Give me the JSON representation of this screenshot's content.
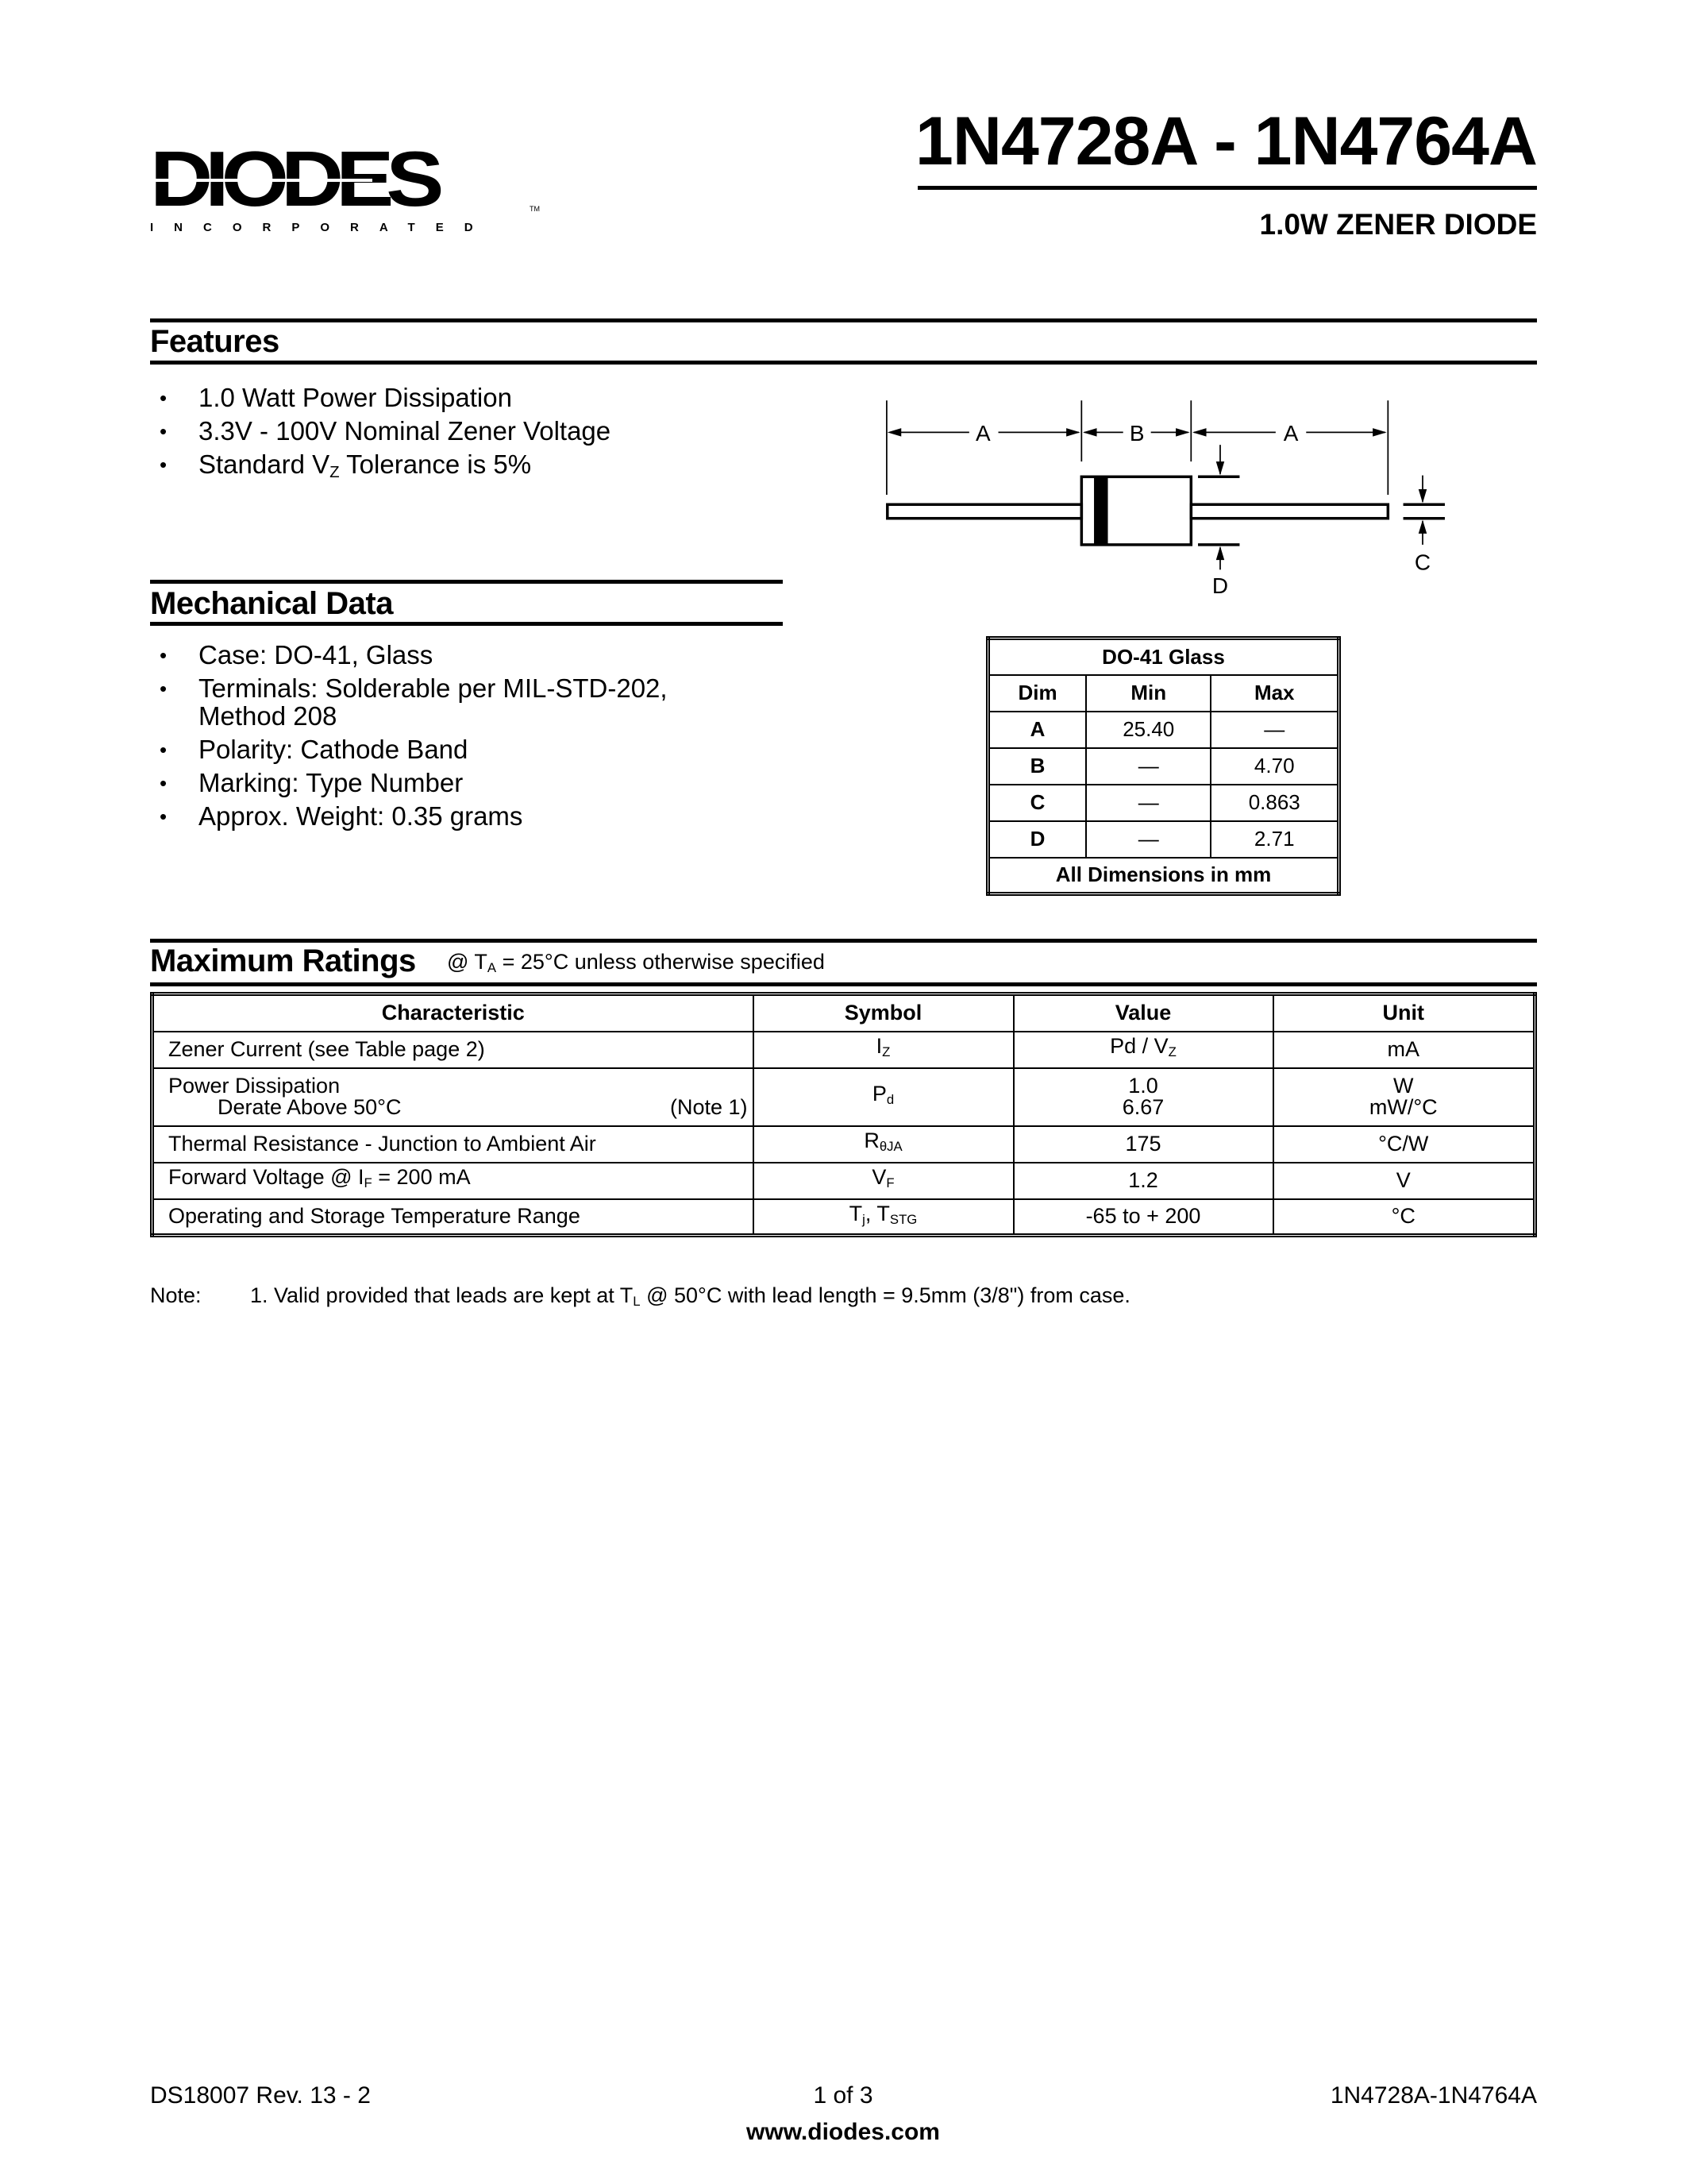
{
  "header": {
    "title": "1N4728A - 1N4764A",
    "subtitle": "1.0W ZENER DIODE",
    "logo_text": "DIODES",
    "logo_sub": "INCORPORATED",
    "logo_tm": "TM"
  },
  "features": {
    "heading": "Features",
    "items": [
      {
        "text": "1.0 Watt Power Dissipation"
      },
      {
        "text": "3.3V - 100V Nominal Zener Voltage"
      },
      {
        "pre": "Standard V",
        "sub": "Z",
        "post": " Tolerance is 5%"
      }
    ]
  },
  "mechanical": {
    "heading": "Mechanical Data",
    "items": [
      "Case: DO-41, Glass",
      "Terminals: Solderable per MIL-STD-202,",
      "Method 208",
      "Polarity: Cathode Band",
      "Marking: Type Number",
      "Approx. Weight: 0.35 grams"
    ]
  },
  "diagram": {
    "labels": {
      "a": "A",
      "b": "B",
      "c": "C",
      "d": "D"
    }
  },
  "dim_table": {
    "title": "DO-41 Glass",
    "headers": [
      "Dim",
      "Min",
      "Max"
    ],
    "rows": [
      [
        "A",
        "25.40",
        "—"
      ],
      [
        "B",
        "—",
        "4.70"
      ],
      [
        "C",
        "—",
        "0.863"
      ],
      [
        "D",
        "—",
        "2.71"
      ]
    ],
    "footer": "All Dimensions in mm"
  },
  "ratings": {
    "heading": "Maximum Ratings",
    "cond_pre": "@ T",
    "cond_sub": "A",
    "cond_post": " = 25°C unless otherwise specified",
    "headers": [
      "Characteristic",
      "Symbol",
      "Value",
      "Unit"
    ],
    "rows": [
      {
        "char": "Zener Current (see Table page 2)",
        "sym": "I",
        "sym_sub": "Z",
        "val": "Pd / V",
        "val_sub": "Z",
        "unit": "mA"
      },
      {
        "char": "Power Dissipation",
        "char2": "Derate Above 50°C",
        "note": "(Note 1)",
        "sym": "P",
        "sym_sub": "d",
        "val": "1.0",
        "val2": "6.67",
        "unit": "W",
        "unit2": "mW/°C"
      },
      {
        "char": "Thermal Resistance - Junction to Ambient Air",
        "sym": "R",
        "sym_sub": "θJA",
        "val": "175",
        "unit": "°C/W"
      },
      {
        "char_pre": "Forward Voltage @ I",
        "char_sub": "F",
        "char_post": " = 200 mA",
        "sym": "V",
        "sym_sub": "F",
        "val": "1.2",
        "unit": "V"
      },
      {
        "char": "Operating and Storage Temperature Range",
        "sym": "T",
        "sym_sub": "j",
        "sym_mid": ", T",
        "sym_sub2": "STG",
        "val": "-65 to + 200",
        "unit": "°C"
      }
    ]
  },
  "note": {
    "label": "Note:",
    "pre": "1. Valid provided that leads are kept at T",
    "sub": "L",
    "post": " @ 50°C with lead length = 9.5mm (3/8\") from case."
  },
  "footer": {
    "left": "DS18007 Rev. 13 - 2",
    "center": "1 of 3",
    "right": "1N4728A-1N4764A",
    "url": "www.diodes.com"
  }
}
